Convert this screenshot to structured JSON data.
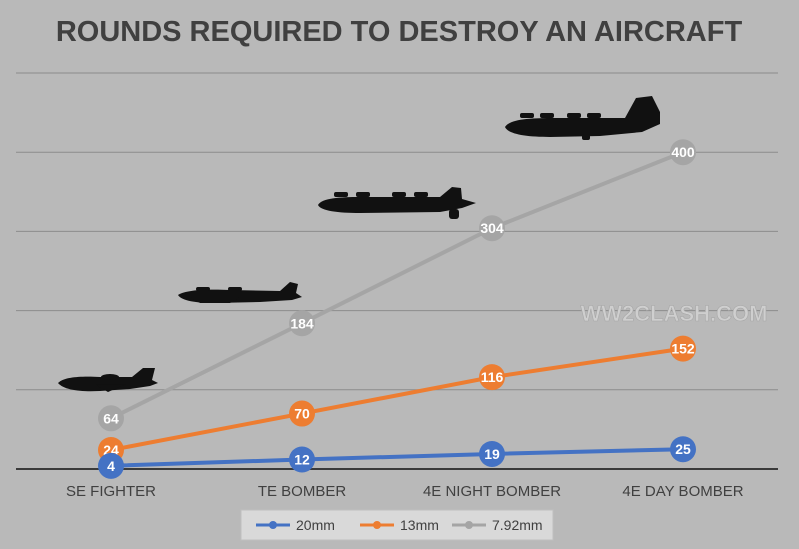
{
  "chart_data": {
    "type": "line",
    "title": "ROUNDS REQUIRED TO DESTROY AN AIRCRAFT",
    "categories": [
      "SE FIGHTER",
      "TE BOMBER",
      "4E NIGHT BOMBER",
      "4E DAY BOMBER"
    ],
    "series": [
      {
        "name": "20mm",
        "color": "#4472c4",
        "values": [
          4,
          12,
          19,
          25
        ]
      },
      {
        "name": "13mm",
        "color": "#ed7d31",
        "values": [
          24,
          70,
          116,
          152
        ]
      },
      {
        "name": "7.92mm",
        "color": "#a5a5a5",
        "values": [
          64,
          184,
          304,
          400
        ]
      }
    ],
    "ylim": [
      0,
      500
    ],
    "grid": true,
    "show_value_labels": true,
    "legend": "bottom",
    "watermark": "WW2CLASH.COM",
    "aircraft_icons": [
      "fighter-silhouette-icon",
      "twin-engine-bomber-silhouette-icon",
      "four-engine-night-bomber-silhouette-icon",
      "four-engine-day-bomber-silhouette-icon"
    ]
  }
}
